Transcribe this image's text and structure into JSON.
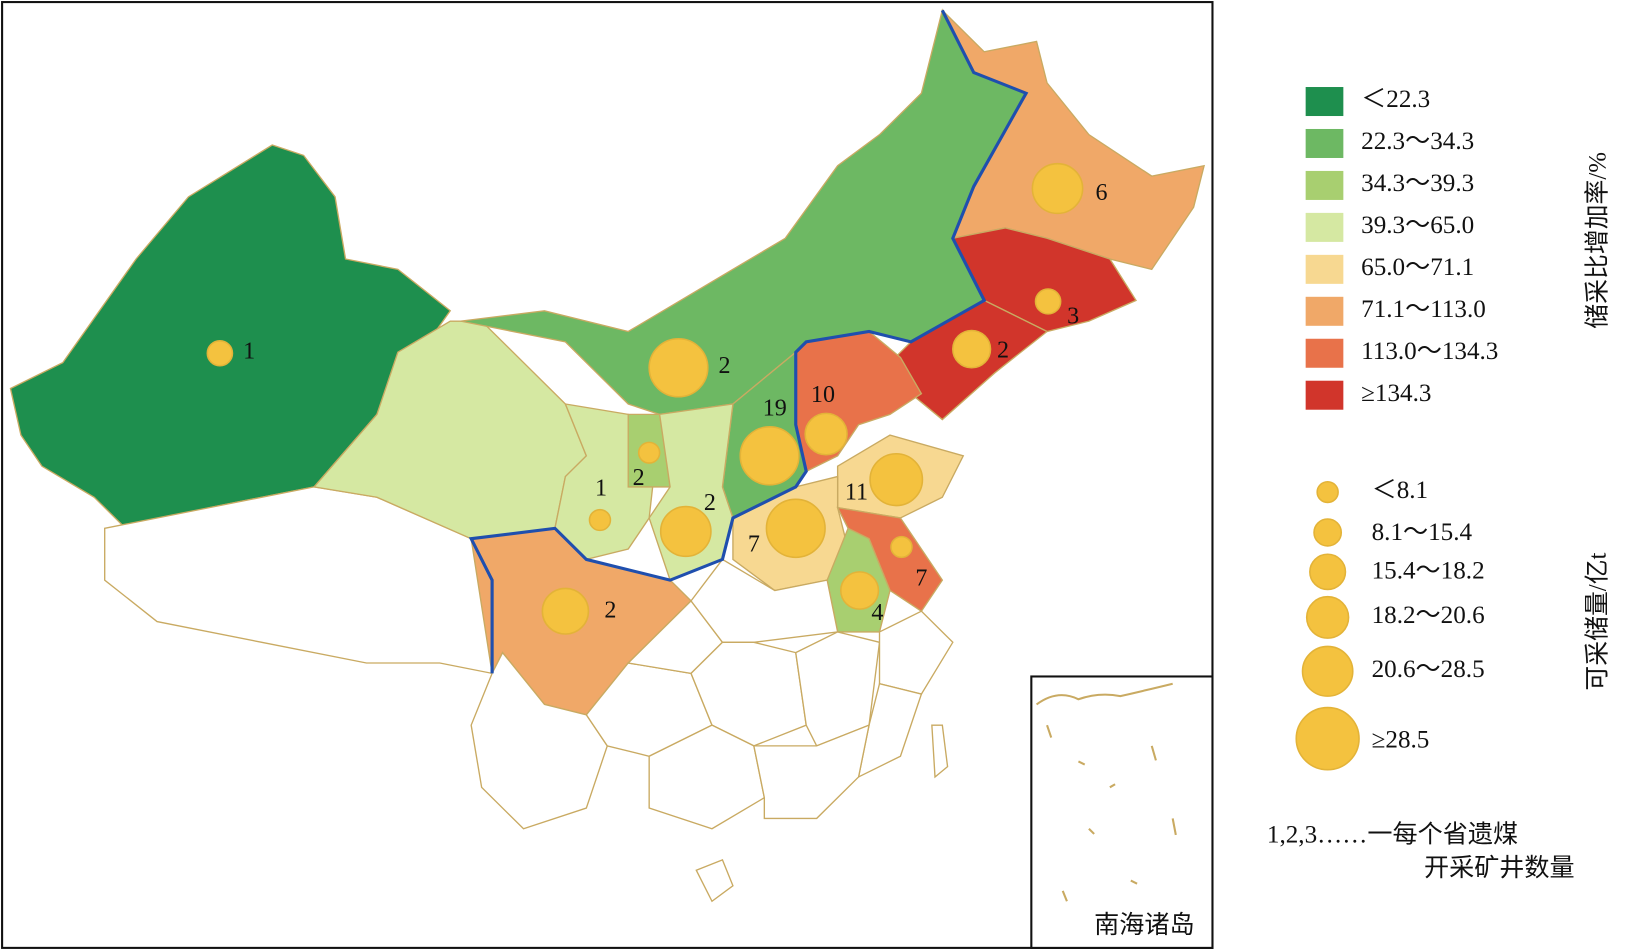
{
  "legend_ratio": {
    "title": "储采比增加率/%",
    "items": [
      {
        "label": "＜22.3",
        "color": "#1e8f4e"
      },
      {
        "label": "22.3～34.3",
        "color": "#6db863"
      },
      {
        "label": "34.3～39.3",
        "color": "#a8cf70"
      },
      {
        "label": "39.3～65.0",
        "color": "#d5e8a2"
      },
      {
        "label": "65.0～71.1",
        "color": "#f7d891"
      },
      {
        "label": "71.1～113.0",
        "color": "#f0a868"
      },
      {
        "label": "113.0～134.3",
        "color": "#e8724a"
      },
      {
        "label": "≥134.3",
        "color": "#d1352b"
      }
    ]
  },
  "legend_reserve": {
    "title": "可采储量/亿t",
    "items": [
      "＜8.1",
      "8.1～15.4",
      "15.4～18.2",
      "18.2～20.6",
      "20.6～28.5",
      "≥28.5"
    ]
  },
  "mine_counts": [
    1,
    2,
    6,
    3,
    2,
    10,
    19,
    11,
    7,
    2,
    2,
    1,
    2,
    4,
    7
  ],
  "note": [
    "1,2,3……一每个省遗煤",
    "开采矿井数量"
  ],
  "inset_label": "南海诸岛"
}
